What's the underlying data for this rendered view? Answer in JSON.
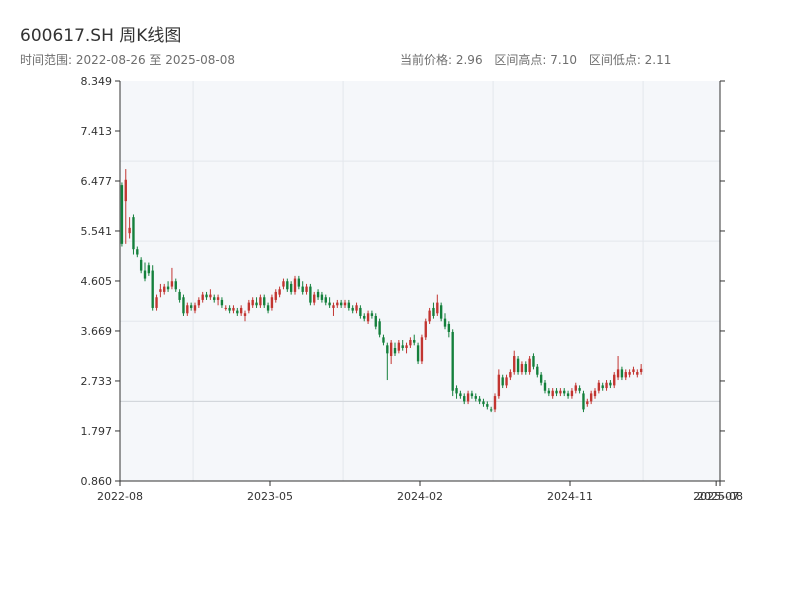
{
  "title": "600617.SH 周K线图",
  "subtitle": "时间范围: 2022-08-26 至 2025-08-08",
  "stats": {
    "current": "当前价格: 2.96",
    "high": "区间高点: 7.10",
    "low": "区间低点: 2.11"
  },
  "colors": {
    "up": "#c23531",
    "down": "#14803c",
    "plot_bg": "#f5f7fa",
    "grid": "#e3e7ec",
    "axis": "#333333"
  },
  "chart_data": {
    "type": "candlestick",
    "ylim": [
      0.86,
      8.349
    ],
    "y_ticks": [
      "0.860",
      "1.797",
      "2.733",
      "3.669",
      "4.605",
      "5.541",
      "6.477",
      "7.413",
      "8.349"
    ],
    "x_ticks": [
      "2022-08",
      "2023-05",
      "2024-02",
      "2024-11",
      "2025-07",
      "2025-08"
    ],
    "x_tick_weeks": [
      0,
      39,
      78,
      117,
      155,
      156
    ],
    "y_gridlines": [
      2.35,
      3.85,
      5.35,
      6.85
    ],
    "x_gridlines": [
      19,
      58,
      97,
      136
    ],
    "hline": 2.35,
    "candles": [
      [
        6.4,
        6.45,
        5.25,
        5.3
      ],
      [
        6.1,
        6.7,
        5.3,
        6.5
      ],
      [
        5.5,
        5.8,
        5.4,
        5.6
      ],
      [
        5.8,
        5.85,
        5.1,
        5.2
      ],
      [
        5.2,
        5.25,
        5.05,
        5.1
      ],
      [
        5.0,
        5.05,
        4.75,
        4.8
      ],
      [
        4.8,
        4.95,
        4.6,
        4.65
      ],
      [
        4.9,
        4.95,
        4.7,
        4.75
      ],
      [
        4.8,
        4.9,
        4.05,
        4.1
      ],
      [
        4.1,
        4.35,
        4.05,
        4.3
      ],
      [
        4.4,
        4.55,
        4.3,
        4.45
      ],
      [
        4.4,
        4.55,
        4.35,
        4.5
      ],
      [
        4.5,
        4.6,
        4.4,
        4.45
      ],
      [
        4.5,
        4.85,
        4.45,
        4.6
      ],
      [
        4.6,
        4.65,
        4.4,
        4.45
      ],
      [
        4.4,
        4.45,
        4.2,
        4.25
      ],
      [
        4.3,
        4.35,
        3.95,
        4.0
      ],
      [
        4.0,
        4.2,
        3.95,
        4.15
      ],
      [
        4.15,
        4.2,
        4.05,
        4.1
      ],
      [
        4.05,
        4.2,
        4.0,
        4.15
      ],
      [
        4.15,
        4.3,
        4.1,
        4.25
      ],
      [
        4.25,
        4.4,
        4.2,
        4.35
      ],
      [
        4.35,
        4.4,
        4.25,
        4.3
      ],
      [
        4.3,
        4.45,
        4.25,
        4.35
      ],
      [
        4.3,
        4.35,
        4.2,
        4.25
      ],
      [
        4.25,
        4.35,
        4.15,
        4.3
      ],
      [
        4.25,
        4.3,
        4.1,
        4.15
      ],
      [
        4.1,
        4.15,
        4.05,
        4.1
      ],
      [
        4.1,
        4.15,
        4.0,
        4.05
      ],
      [
        4.05,
        4.15,
        4.0,
        4.1
      ],
      [
        4.05,
        4.1,
        3.95,
        4.0
      ],
      [
        4.0,
        4.15,
        3.95,
        4.1
      ],
      [
        3.95,
        4.05,
        3.85,
        4.0
      ],
      [
        4.05,
        4.25,
        4.0,
        4.2
      ],
      [
        4.15,
        4.3,
        4.1,
        4.25
      ],
      [
        4.2,
        4.3,
        4.1,
        4.15
      ],
      [
        4.15,
        4.35,
        4.1,
        4.3
      ],
      [
        4.3,
        4.35,
        4.1,
        4.15
      ],
      [
        4.15,
        4.2,
        4.0,
        4.05
      ],
      [
        4.1,
        4.35,
        4.05,
        4.3
      ],
      [
        4.25,
        4.45,
        4.2,
        4.4
      ],
      [
        4.35,
        4.5,
        4.3,
        4.45
      ],
      [
        4.5,
        4.65,
        4.45,
        4.6
      ],
      [
        4.6,
        4.65,
        4.4,
        4.45
      ],
      [
        4.55,
        4.6,
        4.35,
        4.4
      ],
      [
        4.4,
        4.7,
        4.35,
        4.65
      ],
      [
        4.65,
        4.7,
        4.45,
        4.5
      ],
      [
        4.5,
        4.6,
        4.35,
        4.4
      ],
      [
        4.4,
        4.55,
        4.35,
        4.5
      ],
      [
        4.5,
        4.55,
        4.15,
        4.2
      ],
      [
        4.2,
        4.4,
        4.15,
        4.35
      ],
      [
        4.4,
        4.45,
        4.25,
        4.3
      ],
      [
        4.35,
        4.4,
        4.2,
        4.25
      ],
      [
        4.3,
        4.35,
        4.15,
        4.2
      ],
      [
        4.2,
        4.3,
        4.1,
        4.15
      ],
      [
        4.1,
        4.2,
        3.95,
        4.15
      ],
      [
        4.15,
        4.25,
        4.1,
        4.2
      ],
      [
        4.2,
        4.25,
        4.1,
        4.15
      ],
      [
        4.15,
        4.25,
        4.1,
        4.2
      ],
      [
        4.2,
        4.25,
        4.05,
        4.1
      ],
      [
        4.1,
        4.15,
        4.0,
        4.05
      ],
      [
        4.05,
        4.2,
        4.0,
        4.15
      ],
      [
        4.1,
        4.15,
        3.9,
        3.95
      ],
      [
        3.95,
        4.0,
        3.85,
        3.9
      ],
      [
        3.85,
        4.05,
        3.8,
        4.0
      ],
      [
        4.0,
        4.05,
        3.9,
        3.95
      ],
      [
        3.95,
        4.0,
        3.7,
        3.75
      ],
      [
        3.85,
        3.9,
        3.55,
        3.6
      ],
      [
        3.55,
        3.6,
        3.4,
        3.45
      ],
      [
        3.4,
        3.45,
        2.75,
        3.25
      ],
      [
        3.2,
        3.5,
        3.05,
        3.45
      ],
      [
        3.35,
        3.45,
        3.2,
        3.25
      ],
      [
        3.3,
        3.5,
        3.25,
        3.45
      ],
      [
        3.4,
        3.5,
        3.3,
        3.35
      ],
      [
        3.35,
        3.45,
        3.25,
        3.4
      ],
      [
        3.4,
        3.55,
        3.35,
        3.5
      ],
      [
        3.5,
        3.6,
        3.4,
        3.45
      ],
      [
        3.4,
        3.45,
        3.05,
        3.1
      ],
      [
        3.1,
        3.6,
        3.05,
        3.55
      ],
      [
        3.55,
        3.9,
        3.5,
        3.85
      ],
      [
        3.85,
        4.1,
        3.8,
        4.05
      ],
      [
        4.1,
        4.2,
        3.9,
        3.95
      ],
      [
        4.0,
        4.35,
        3.95,
        4.2
      ],
      [
        4.15,
        4.2,
        3.85,
        3.9
      ],
      [
        3.9,
        4.0,
        3.7,
        3.75
      ],
      [
        3.8,
        3.85,
        3.55,
        3.65
      ],
      [
        3.65,
        3.7,
        2.45,
        2.55
      ],
      [
        2.6,
        2.65,
        2.4,
        2.5
      ],
      [
        2.5,
        2.55,
        2.4,
        2.45
      ],
      [
        2.45,
        2.5,
        2.3,
        2.35
      ],
      [
        2.35,
        2.55,
        2.3,
        2.5
      ],
      [
        2.5,
        2.55,
        2.4,
        2.45
      ],
      [
        2.45,
        2.5,
        2.35,
        2.4
      ],
      [
        2.4,
        2.45,
        2.3,
        2.35
      ],
      [
        2.35,
        2.4,
        2.25,
        2.3
      ],
      [
        2.3,
        2.35,
        2.2,
        2.25
      ],
      [
        2.2,
        2.25,
        2.15,
        2.18
      ],
      [
        2.2,
        2.5,
        2.15,
        2.45
      ],
      [
        2.45,
        2.95,
        2.4,
        2.85
      ],
      [
        2.8,
        2.85,
        2.6,
        2.65
      ],
      [
        2.65,
        2.85,
        2.6,
        2.8
      ],
      [
        2.8,
        2.95,
        2.75,
        2.9
      ],
      [
        2.9,
        3.3,
        2.85,
        3.2
      ],
      [
        3.15,
        3.2,
        2.85,
        2.9
      ],
      [
        2.9,
        3.1,
        2.85,
        3.05
      ],
      [
        3.05,
        3.1,
        2.85,
        2.9
      ],
      [
        2.9,
        3.2,
        2.85,
        3.15
      ],
      [
        3.2,
        3.25,
        2.95,
        3.0
      ],
      [
        3.0,
        3.05,
        2.8,
        2.85
      ],
      [
        2.85,
        2.9,
        2.65,
        2.7
      ],
      [
        2.7,
        2.75,
        2.5,
        2.55
      ],
      [
        2.55,
        2.6,
        2.45,
        2.5
      ],
      [
        2.45,
        2.6,
        2.4,
        2.55
      ],
      [
        2.55,
        2.6,
        2.45,
        2.5
      ],
      [
        2.5,
        2.6,
        2.45,
        2.55
      ],
      [
        2.55,
        2.6,
        2.45,
        2.5
      ],
      [
        2.5,
        2.55,
        2.4,
        2.45
      ],
      [
        2.45,
        2.6,
        2.4,
        2.55
      ],
      [
        2.55,
        2.7,
        2.5,
        2.65
      ],
      [
        2.6,
        2.65,
        2.5,
        2.55
      ],
      [
        2.5,
        2.55,
        2.15,
        2.2
      ],
      [
        2.3,
        2.4,
        2.25,
        2.35
      ],
      [
        2.35,
        2.55,
        2.3,
        2.5
      ],
      [
        2.45,
        2.6,
        2.4,
        2.55
      ],
      [
        2.55,
        2.75,
        2.5,
        2.7
      ],
      [
        2.65,
        2.7,
        2.55,
        2.6
      ],
      [
        2.6,
        2.75,
        2.55,
        2.7
      ],
      [
        2.7,
        2.75,
        2.6,
        2.65
      ],
      [
        2.65,
        2.9,
        2.6,
        2.85
      ],
      [
        2.8,
        3.2,
        2.75,
        2.95
      ],
      [
        2.95,
        3.0,
        2.75,
        2.8
      ],
      [
        2.8,
        2.95,
        2.75,
        2.9
      ],
      [
        2.85,
        2.95,
        2.8,
        2.9
      ],
      [
        2.9,
        3.0,
        2.85,
        2.95
      ],
      [
        2.85,
        2.95,
        2.8,
        2.9
      ],
      [
        2.9,
        3.05,
        2.85,
        2.96
      ]
    ]
  }
}
